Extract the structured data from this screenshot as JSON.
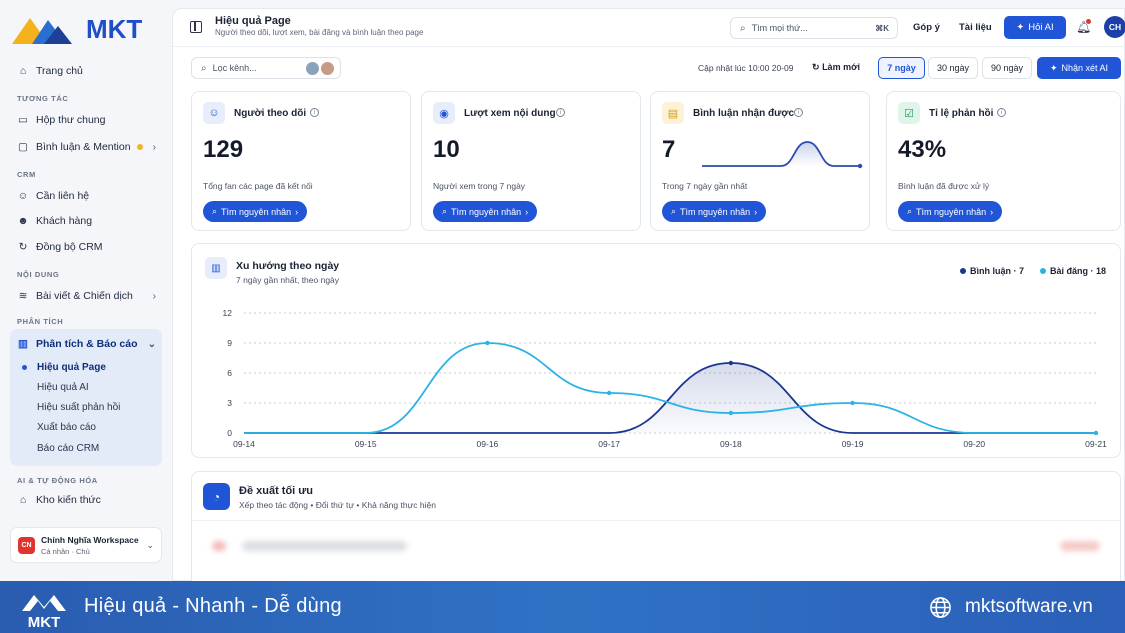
{
  "brand": {
    "name": "MKT"
  },
  "sidebar": {
    "home": "Trang chủ",
    "sections": {
      "interaction": "TƯƠNG TÁC",
      "crm": "CRM",
      "content": "NỘI DUNG",
      "analytics": "PHÂN TÍCH",
      "ai": "AI & TỰ ĐỘNG HÓA"
    },
    "inbox": "Hộp thư chung",
    "comments": "Bình luận & Mention",
    "need_contact": "Cần liên hệ",
    "customers": "Khách hàng",
    "crm_sync": "Đồng bộ CRM",
    "posts": "Bài viết & Chiến dịch",
    "analytics_group": "Phân tích & Báo cáo",
    "analytics_items": [
      "Hiệu quả Page",
      "Hiệu quả AI",
      "Hiệu suất phản hồi",
      "Xuất báo cáo",
      "Báo cáo CRM"
    ],
    "knowledge": "Kho kiến thức",
    "workspace": {
      "initials": "CN",
      "name": "Chính Nghĩa Workspace",
      "sub": "Cá nhân · Chủ"
    }
  },
  "header": {
    "title": "Hiệu quả Page",
    "subtitle": "Người theo dõi, lượt xem, bài đăng và bình luận theo page",
    "search_placeholder": "Tìm mọi thứ...",
    "search_shortcut": "⌘K",
    "suggest": "Góp ý",
    "docs": "Tài liệu",
    "ask_ai": "Hỏi AI",
    "avatar": "CH"
  },
  "toolbar": {
    "filter_placeholder": "Lọc kênh...",
    "updated": "Cập nhật lúc 10:00 20-09",
    "refresh": "Làm mới",
    "ranges": [
      "7 ngày",
      "30 ngày",
      "90 ngày"
    ],
    "active_range": "7 ngày",
    "ai_review": "Nhận xét AI"
  },
  "kpis": [
    {
      "title": "Người theo dõi",
      "value": "129",
      "desc": "Tổng fan các page đã kết nối",
      "button": "Tìm nguyên nhân",
      "icon": "users-icon"
    },
    {
      "title": "Lượt xem nội dung",
      "value": "10",
      "desc": "Người xem trong 7 ngày",
      "button": "Tìm nguyên nhân",
      "icon": "eye-icon"
    },
    {
      "title": "Bình luận nhận được",
      "value": "7",
      "desc": "Trong 7 ngày gần nhất",
      "button": "Tìm nguyên nhân",
      "icon": "comment-icon",
      "sparkline": [
        0,
        0,
        0,
        0,
        7,
        0,
        0
      ]
    },
    {
      "title": "Tỉ lệ phản hồi",
      "value": "43%",
      "desc": "Bình luận đã được xử lý",
      "button": "Tìm nguyên nhân",
      "icon": "reply-icon"
    }
  ],
  "trend": {
    "title": "Xu hướng theo ngày",
    "subtitle": "7 ngày gần nhất, theo ngày",
    "legend": [
      {
        "label": "Bình luận · 7",
        "color": "#1a3690"
      },
      {
        "label": "Bài đăng · 18",
        "color": "#2bb3e6"
      }
    ]
  },
  "chart_data": {
    "type": "line",
    "x": [
      "09-14",
      "09-15",
      "09-16",
      "09-17",
      "09-18",
      "09-19",
      "09-20",
      "09-21"
    ],
    "series": [
      {
        "name": "Bình luận",
        "values": [
          0,
          0,
          0,
          0,
          7,
          0,
          0,
          0
        ],
        "color": "#1a3690"
      },
      {
        "name": "Bài đăng",
        "values": [
          0,
          0,
          9,
          4,
          2,
          3,
          0,
          0
        ],
        "color": "#2bb3e6"
      }
    ],
    "ylim": [
      0,
      12
    ],
    "yticks": [
      "0",
      "3",
      "6",
      "9",
      "12"
    ]
  },
  "suggestion": {
    "title": "Đề xuất tối ưu",
    "subtitle": "Xếp theo tác động • Đổi thứ tự • Khả năng thực hiện"
  },
  "footer": {
    "tagline": "Hiệu quả - Nhanh - Dễ dùng",
    "site": "mktsoftware.vn"
  }
}
